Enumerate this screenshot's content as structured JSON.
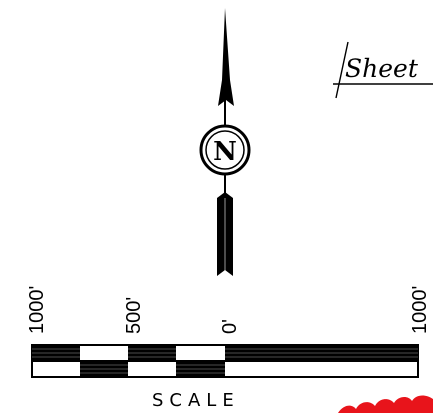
{
  "sheet_label": "Sheet",
  "north_label": "N",
  "scale": {
    "title": "SCALE",
    "ticks": [
      "1000'",
      "500'",
      "0'",
      "1000'"
    ]
  },
  "colors": {
    "ink": "#000000",
    "paper": "#ffffff",
    "revision_cloud": "#e8141b"
  },
  "icons": [
    "north-arrow-icon",
    "revision-cloud-icon"
  ]
}
